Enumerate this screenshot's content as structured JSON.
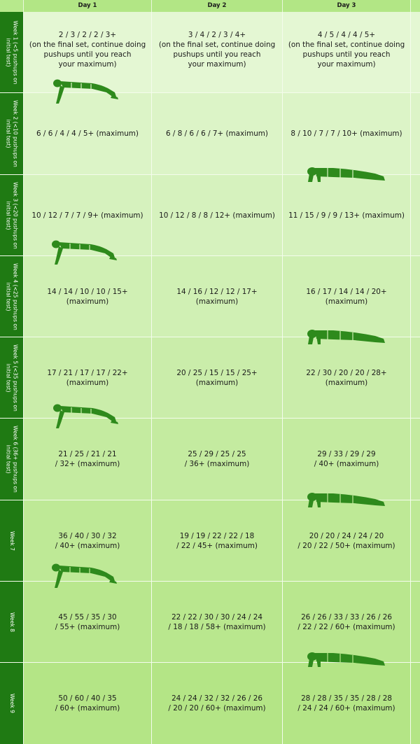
{
  "header": {
    "day1": "Day 1",
    "day2": "Day 2",
    "day3": "Day 3"
  },
  "weeks": [
    {
      "label": "Week 1 (<5 pushups on initial test)",
      "day1": "2 / 3 / 2 / 2 / 3+\n(on the final set, continue doing\npushups until you reach\nyour maximum)",
      "day2": "3 / 4 / 2 / 3 / 4+\n(on the final set, continue doing\npushups until you reach\nyour maximum)",
      "day3": "4 / 5 / 4 / 4 / 5+\n(on the final set, continue doing\npushups until you reach\nyour maximum)"
    },
    {
      "label": "Week 2 (<10 pushups on initial test)",
      "day1": "6 / 6 / 4 / 4 / 5+ (maximum)",
      "day2": "6 / 8 / 6 / 6 / 7+ (maximum)",
      "day3": "8 / 10 / 7 / 7 / 10+ (maximum)"
    },
    {
      "label": "Week 3 (<20 pushups on initial test)",
      "day1": "10 / 12 / 7 / 7 / 9+ (maximum)",
      "day2": "10 / 12 / 8 / 8 / 12+ (maximum)",
      "day3": "11 / 15 / 9 / 9 / 13+ (maximum)"
    },
    {
      "label": "Week 4 (<25 pushups on initial test)",
      "day1": "14 / 14 / 10 / 10 / 15+ (maximum)",
      "day2": "14 / 16 / 12 / 12 / 17+ (maximum)",
      "day3": "16 / 17 / 14 / 14 / 20+ (maximum)"
    },
    {
      "label": "Week 5 (<35 pushups on initial test)",
      "day1": "17 / 21 / 17 / 17 / 22+ (maximum)",
      "day2": "20 / 25 / 15 / 15 / 25+ (maximum)",
      "day3": "22 / 30 / 20 / 20 / 28+ (maximum)"
    },
    {
      "label": "Week 6 (36+ pushups on initial test)",
      "day1": "21 / 25 / 21 / 21\n/ 32+ (maximum)",
      "day2": "25 / 29 / 25 / 25\n/ 36+ (maximum)",
      "day3": "29 / 33 / 29 / 29\n/ 40+ (maximum)"
    },
    {
      "label": "Week 7",
      "day1": "36 / 40 / 30 / 32\n/ 40+ (maximum)",
      "day2": "19 / 19 / 22 / 22 / 18\n/ 22 / 45+ (maximum)",
      "day3": "20 / 20 / 24 / 24 / 20\n/ 20 / 22 / 50+ (maximum)"
    },
    {
      "label": "Week 8",
      "day1": "45 / 55 / 35 / 30\n/ 55+ (maximum)",
      "day2": "22 / 22 / 30 / 30 / 24 / 24\n/ 18 / 18 / 58+ (maximum)",
      "day3": "26 / 26 / 33 / 33 / 26 / 26\n/ 22 / 22 / 60+ (maximum)"
    },
    {
      "label": "Week 9",
      "day1": "50 / 60 / 40 / 35\n/ 60+ (maximum)",
      "day2": "24 / 24 / 32 / 32 / 26 / 26\n/ 20 / 20 / 60+ (maximum)",
      "day3": "28 / 28 / 35 / 35 / 28 / 28\n/ 24 / 24 / 60+ (maximum)"
    }
  ],
  "colors": {
    "label_bg": "#1f7a13",
    "figure": "#2e8a1c",
    "header_bg": "#b2e685"
  },
  "icons": {
    "figure_side": "pushup-figure-icon",
    "figure_front": "pushup-figure-front-icon"
  }
}
